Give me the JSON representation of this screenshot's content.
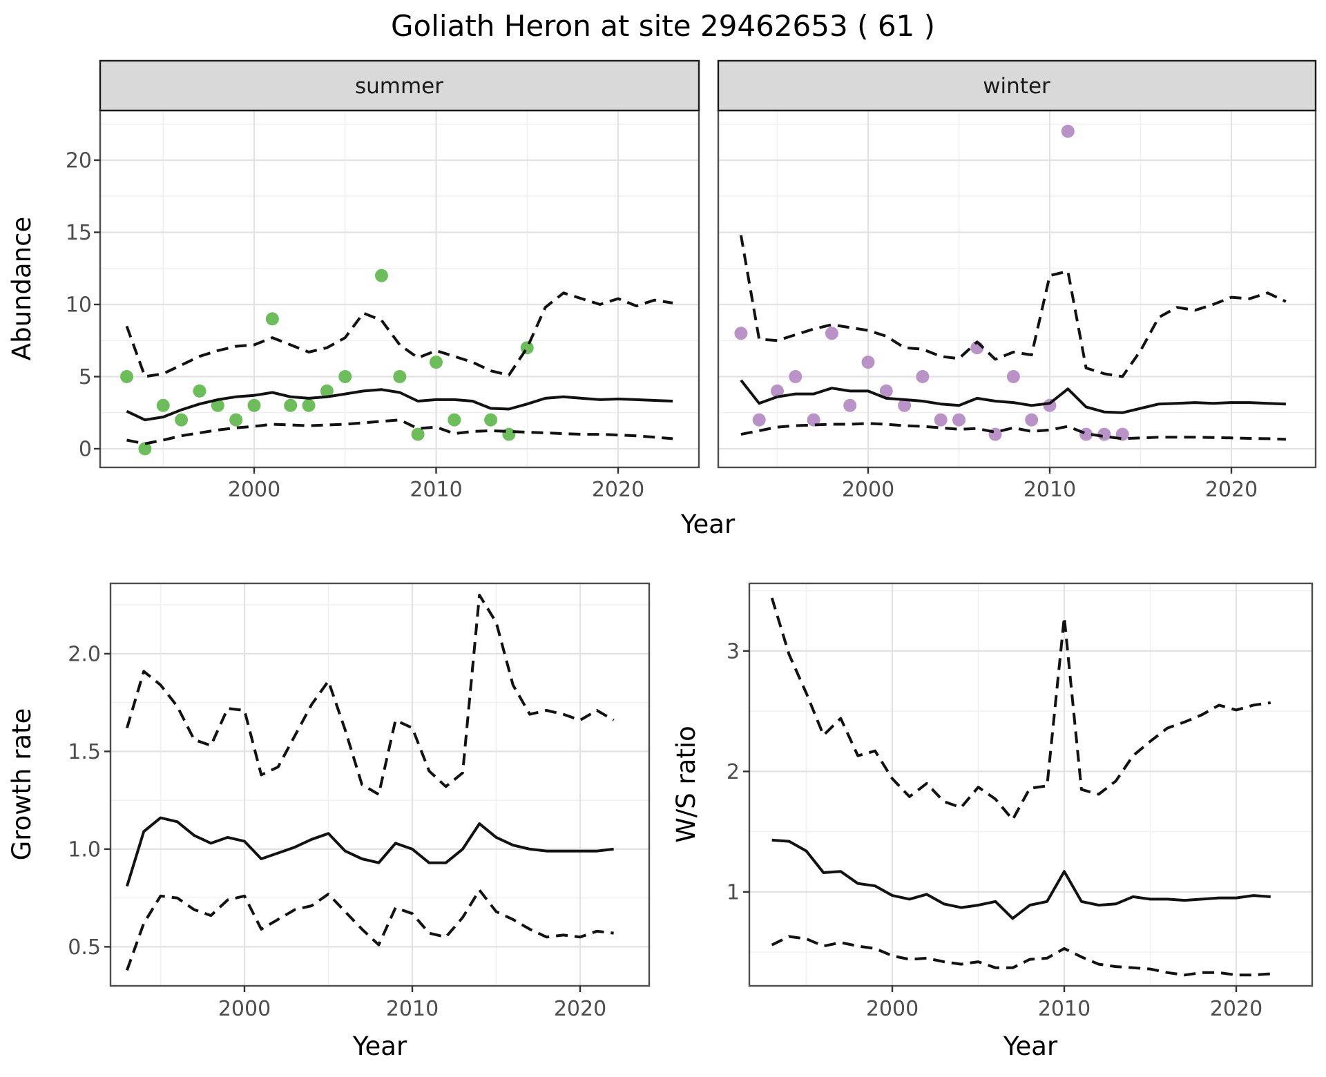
{
  "title": "Goliath Heron at site 29462653 ( 61 )",
  "colors": {
    "summer_point": "#6cbe5b",
    "winter_point": "#b993c8",
    "line": "#121212",
    "strip_bg": "#d9d9d9",
    "strip_border": "#1a1a1a",
    "panel_border": "#4d4d4d",
    "grid_major": "#e2e2e2",
    "grid_minor": "#f0f0f0",
    "tick_mark": "#333333",
    "tick_text": "#4d4d4d",
    "panel_bg": "#ffffff"
  },
  "chart_data": [
    {
      "id": "abundance-summer",
      "type": "scatter",
      "facet_label": "summer",
      "xlabel": "Year",
      "ylabel": "Abundance",
      "xlim": [
        1991.6,
        2024.4
      ],
      "ylim": [
        -1.3,
        23.4
      ],
      "xtick_values": [
        2000,
        2010,
        2020
      ],
      "xtick_labels": [
        "2000",
        "2010",
        "2020"
      ],
      "ytick_values": [
        0,
        5,
        10,
        15,
        20
      ],
      "ytick_labels": [
        "0",
        "5",
        "10",
        "15",
        "20"
      ],
      "grid": true,
      "legend": "none",
      "points": [
        [
          1993,
          5
        ],
        [
          1994,
          0
        ],
        [
          1995,
          3
        ],
        [
          1996,
          2
        ],
        [
          1997,
          4
        ],
        [
          1998,
          3
        ],
        [
          1999,
          2
        ],
        [
          2000,
          3
        ],
        [
          2001,
          9
        ],
        [
          2002,
          3
        ],
        [
          2003,
          3
        ],
        [
          2004,
          4
        ],
        [
          2005,
          5
        ],
        [
          2007,
          12
        ],
        [
          2008,
          5
        ],
        [
          2009,
          1
        ],
        [
          2010,
          6
        ],
        [
          2011,
          2
        ],
        [
          2013,
          2
        ],
        [
          2014,
          1
        ],
        [
          2015,
          7
        ]
      ],
      "years": [
        1993,
        1994,
        1995,
        1996,
        1997,
        1998,
        1999,
        2000,
        2001,
        2002,
        2003,
        2004,
        2005,
        2006,
        2007,
        2008,
        2009,
        2010,
        2011,
        2012,
        2013,
        2014,
        2015,
        2016,
        2017,
        2018,
        2019,
        2020,
        2021,
        2022,
        2023
      ],
      "series": [
        {
          "name": "fit",
          "style": "solid",
          "values": [
            2.6,
            2.0,
            2.2,
            2.7,
            3.1,
            3.4,
            3.6,
            3.7,
            3.9,
            3.6,
            3.5,
            3.6,
            3.8,
            4.0,
            4.1,
            3.9,
            3.3,
            3.4,
            3.4,
            3.3,
            2.8,
            2.75,
            3.1,
            3.5,
            3.6,
            3.5,
            3.4,
            3.45,
            3.4,
            3.35,
            3.3
          ]
        },
        {
          "name": "upper_ci",
          "style": "dashed",
          "values": [
            8.5,
            5.0,
            5.2,
            5.8,
            6.4,
            6.8,
            7.1,
            7.2,
            7.7,
            7.2,
            6.7,
            7.0,
            7.7,
            9.4,
            8.9,
            7.2,
            6.3,
            6.8,
            6.4,
            6.0,
            5.4,
            5.1,
            7.0,
            9.8,
            10.8,
            10.4,
            10.0,
            10.4,
            9.9,
            10.3,
            10.1
          ]
        },
        {
          "name": "lower_ci",
          "style": "dashed",
          "values": [
            0.6,
            0.35,
            0.6,
            0.9,
            1.1,
            1.3,
            1.45,
            1.55,
            1.7,
            1.65,
            1.6,
            1.65,
            1.7,
            1.8,
            1.9,
            2.0,
            1.4,
            1.5,
            1.05,
            1.2,
            1.25,
            1.2,
            1.15,
            1.1,
            1.05,
            1.0,
            1.0,
            0.95,
            0.9,
            0.8,
            0.7
          ]
        }
      ]
    },
    {
      "id": "abundance-winter",
      "type": "scatter",
      "facet_label": "winter",
      "xlabel": "Year",
      "ylabel": "Abundance",
      "xlim": [
        1991.6,
        2024.4
      ],
      "ylim": [
        -1.3,
        23.4
      ],
      "xtick_values": [
        2000,
        2010,
        2020
      ],
      "xtick_labels": [
        "2000",
        "2010",
        "2020"
      ],
      "ytick_values": [
        0,
        5,
        10,
        15,
        20
      ],
      "ytick_labels": [
        "0",
        "5",
        "10",
        "15",
        "20"
      ],
      "grid": true,
      "legend": "none",
      "points": [
        [
          1993,
          8
        ],
        [
          1994,
          2
        ],
        [
          1995,
          4
        ],
        [
          1996,
          5
        ],
        [
          1997,
          2
        ],
        [
          1998,
          8
        ],
        [
          1999,
          3
        ],
        [
          2000,
          6
        ],
        [
          2001,
          4
        ],
        [
          2002,
          3
        ],
        [
          2003,
          5
        ],
        [
          2004,
          2
        ],
        [
          2005,
          2
        ],
        [
          2006,
          7
        ],
        [
          2007,
          1
        ],
        [
          2008,
          5
        ],
        [
          2009,
          2
        ],
        [
          2010,
          3
        ],
        [
          2011,
          22
        ],
        [
          2012,
          1
        ],
        [
          2013,
          1
        ],
        [
          2014,
          1
        ]
      ],
      "years": [
        1993,
        1994,
        1995,
        1996,
        1997,
        1998,
        1999,
        2000,
        2001,
        2002,
        2003,
        2004,
        2005,
        2006,
        2007,
        2008,
        2009,
        2010,
        2011,
        2012,
        2013,
        2014,
        2015,
        2016,
        2017,
        2018,
        2019,
        2020,
        2021,
        2022,
        2023
      ],
      "series": [
        {
          "name": "fit",
          "style": "solid",
          "values": [
            4.75,
            3.15,
            3.6,
            3.8,
            3.8,
            4.2,
            4.0,
            4.0,
            3.5,
            3.4,
            3.3,
            3.1,
            3.0,
            3.5,
            3.3,
            3.2,
            3.0,
            3.15,
            4.15,
            2.9,
            2.55,
            2.5,
            2.8,
            3.1,
            3.15,
            3.2,
            3.15,
            3.2,
            3.2,
            3.15,
            3.1
          ]
        },
        {
          "name": "upper_ci",
          "style": "dashed",
          "values": [
            14.8,
            7.6,
            7.5,
            7.9,
            8.3,
            8.6,
            8.4,
            8.2,
            7.8,
            7.0,
            6.9,
            6.4,
            6.25,
            7.4,
            6.2,
            6.7,
            6.5,
            12.0,
            12.3,
            5.6,
            5.2,
            5.0,
            6.8,
            9.1,
            9.8,
            9.6,
            10.0,
            10.5,
            10.4,
            10.8,
            10.2
          ]
        },
        {
          "name": "lower_ci",
          "style": "dashed",
          "values": [
            1.0,
            1.25,
            1.5,
            1.6,
            1.65,
            1.7,
            1.7,
            1.75,
            1.7,
            1.6,
            1.55,
            1.45,
            1.35,
            1.4,
            1.15,
            1.45,
            1.2,
            1.3,
            1.55,
            1.05,
            0.85,
            0.7,
            0.75,
            0.8,
            0.8,
            0.8,
            0.78,
            0.75,
            0.72,
            0.7,
            0.65
          ]
        }
      ]
    },
    {
      "id": "growth-rate",
      "type": "line",
      "facet_label": "",
      "xlabel": "Year",
      "ylabel": "Growth rate",
      "xlim": [
        1992.0,
        2024.1
      ],
      "ylim": [
        0.3,
        2.36
      ],
      "xtick_values": [
        2000,
        2010,
        2020
      ],
      "xtick_labels": [
        "2000",
        "2010",
        "2020"
      ],
      "ytick_values": [
        0.5,
        1.0,
        1.5,
        2.0
      ],
      "ytick_labels": [
        "0.5",
        "1.0",
        "1.5",
        "2.0"
      ],
      "grid": true,
      "legend": "none",
      "points": [],
      "years": [
        1993,
        1994,
        1995,
        1996,
        1997,
        1998,
        1999,
        2000,
        2001,
        2002,
        2003,
        2004,
        2005,
        2006,
        2007,
        2008,
        2009,
        2010,
        2011,
        2012,
        2013,
        2014,
        2015,
        2016,
        2017,
        2018,
        2019,
        2020,
        2021,
        2022
      ],
      "series": [
        {
          "name": "fit",
          "style": "solid",
          "values": [
            0.81,
            1.09,
            1.16,
            1.14,
            1.07,
            1.03,
            1.06,
            1.04,
            0.95,
            0.98,
            1.01,
            1.05,
            1.08,
            0.99,
            0.95,
            0.93,
            1.03,
            1.0,
            0.93,
            0.93,
            1.0,
            1.13,
            1.06,
            1.02,
            1.0,
            0.99,
            0.99,
            0.99,
            0.99,
            1.0
          ]
        },
        {
          "name": "upper_ci",
          "style": "dashed",
          "values": [
            1.62,
            1.91,
            1.84,
            1.73,
            1.56,
            1.53,
            1.72,
            1.71,
            1.38,
            1.42,
            1.58,
            1.74,
            1.86,
            1.61,
            1.33,
            1.28,
            1.66,
            1.62,
            1.4,
            1.32,
            1.39,
            2.3,
            2.16,
            1.84,
            1.69,
            1.71,
            1.69,
            1.66,
            1.71,
            1.66
          ]
        },
        {
          "name": "lower_ci",
          "style": "dashed",
          "values": [
            0.38,
            0.62,
            0.76,
            0.75,
            0.69,
            0.66,
            0.74,
            0.76,
            0.59,
            0.64,
            0.69,
            0.71,
            0.77,
            0.68,
            0.59,
            0.51,
            0.7,
            0.67,
            0.57,
            0.55,
            0.65,
            0.79,
            0.68,
            0.64,
            0.59,
            0.55,
            0.56,
            0.55,
            0.58,
            0.57
          ]
        }
      ]
    },
    {
      "id": "ws-ratio",
      "type": "line",
      "facet_label": "",
      "xlabel": "Year",
      "ylabel": "W/S ratio",
      "xlim": [
        1991.7,
        2024.4
      ],
      "ylim": [
        0.22,
        3.56
      ],
      "xtick_values": [
        2000,
        2010,
        2020
      ],
      "xtick_labels": [
        "2000",
        "2010",
        "2020"
      ],
      "ytick_values": [
        1,
        2,
        3
      ],
      "ytick_labels": [
        "1",
        "2",
        "3"
      ],
      "grid": true,
      "legend": "none",
      "points": [],
      "years": [
        1993,
        1994,
        1995,
        1996,
        1997,
        1998,
        1999,
        2000,
        2001,
        2002,
        2003,
        2004,
        2005,
        2006,
        2007,
        2008,
        2009,
        2010,
        2011,
        2012,
        2013,
        2014,
        2015,
        2016,
        2017,
        2018,
        2019,
        2020,
        2021,
        2022
      ],
      "series": [
        {
          "name": "fit",
          "style": "solid",
          "values": [
            1.43,
            1.42,
            1.34,
            1.16,
            1.17,
            1.07,
            1.05,
            0.97,
            0.94,
            0.98,
            0.9,
            0.87,
            0.89,
            0.92,
            0.78,
            0.89,
            0.92,
            1.17,
            0.92,
            0.89,
            0.9,
            0.96,
            0.94,
            0.94,
            0.93,
            0.94,
            0.95,
            0.95,
            0.97,
            0.96
          ]
        },
        {
          "name": "upper_ci",
          "style": "dashed",
          "values": [
            3.44,
            2.97,
            2.65,
            2.3,
            2.44,
            2.13,
            2.17,
            1.94,
            1.79,
            1.9,
            1.75,
            1.7,
            1.87,
            1.77,
            1.6,
            1.86,
            1.88,
            3.28,
            1.85,
            1.81,
            1.92,
            2.13,
            2.25,
            2.36,
            2.41,
            2.47,
            2.55,
            2.51,
            2.55,
            2.57
          ]
        },
        {
          "name": "lower_ci",
          "style": "dashed",
          "values": [
            0.56,
            0.63,
            0.61,
            0.55,
            0.58,
            0.55,
            0.53,
            0.47,
            0.44,
            0.45,
            0.42,
            0.4,
            0.42,
            0.37,
            0.37,
            0.44,
            0.45,
            0.53,
            0.46,
            0.4,
            0.38,
            0.37,
            0.36,
            0.33,
            0.31,
            0.33,
            0.33,
            0.31,
            0.31,
            0.32
          ]
        }
      ]
    }
  ]
}
